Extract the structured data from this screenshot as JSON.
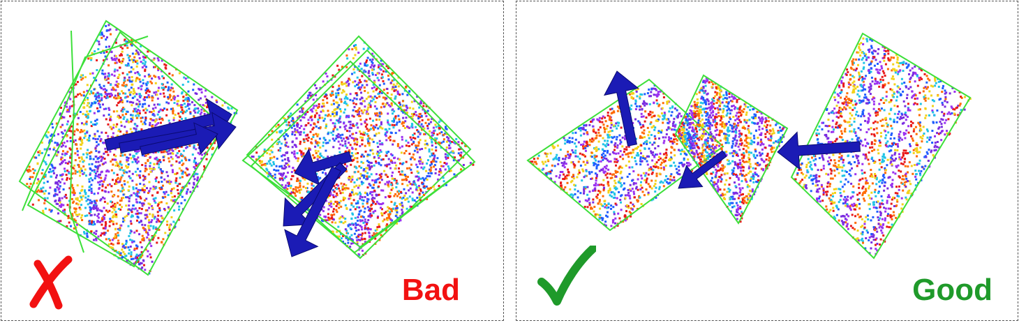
{
  "panels": {
    "bad": {
      "label": "Bad",
      "label_color": "#f21111",
      "mark_icon": "cross-mark-icon"
    },
    "good": {
      "label": "Good",
      "label_color": "#1f9a2a",
      "mark_icon": "check-mark-icon"
    }
  },
  "colors": {
    "frame_outline": "#3de03a",
    "arrow": "#1b1bb5",
    "point_palette": [
      "#e8191a",
      "#ff6a00",
      "#f2d21a",
      "#21c3e6",
      "#1f5cff",
      "#7a2ce0",
      "#9b30f0"
    ]
  }
}
